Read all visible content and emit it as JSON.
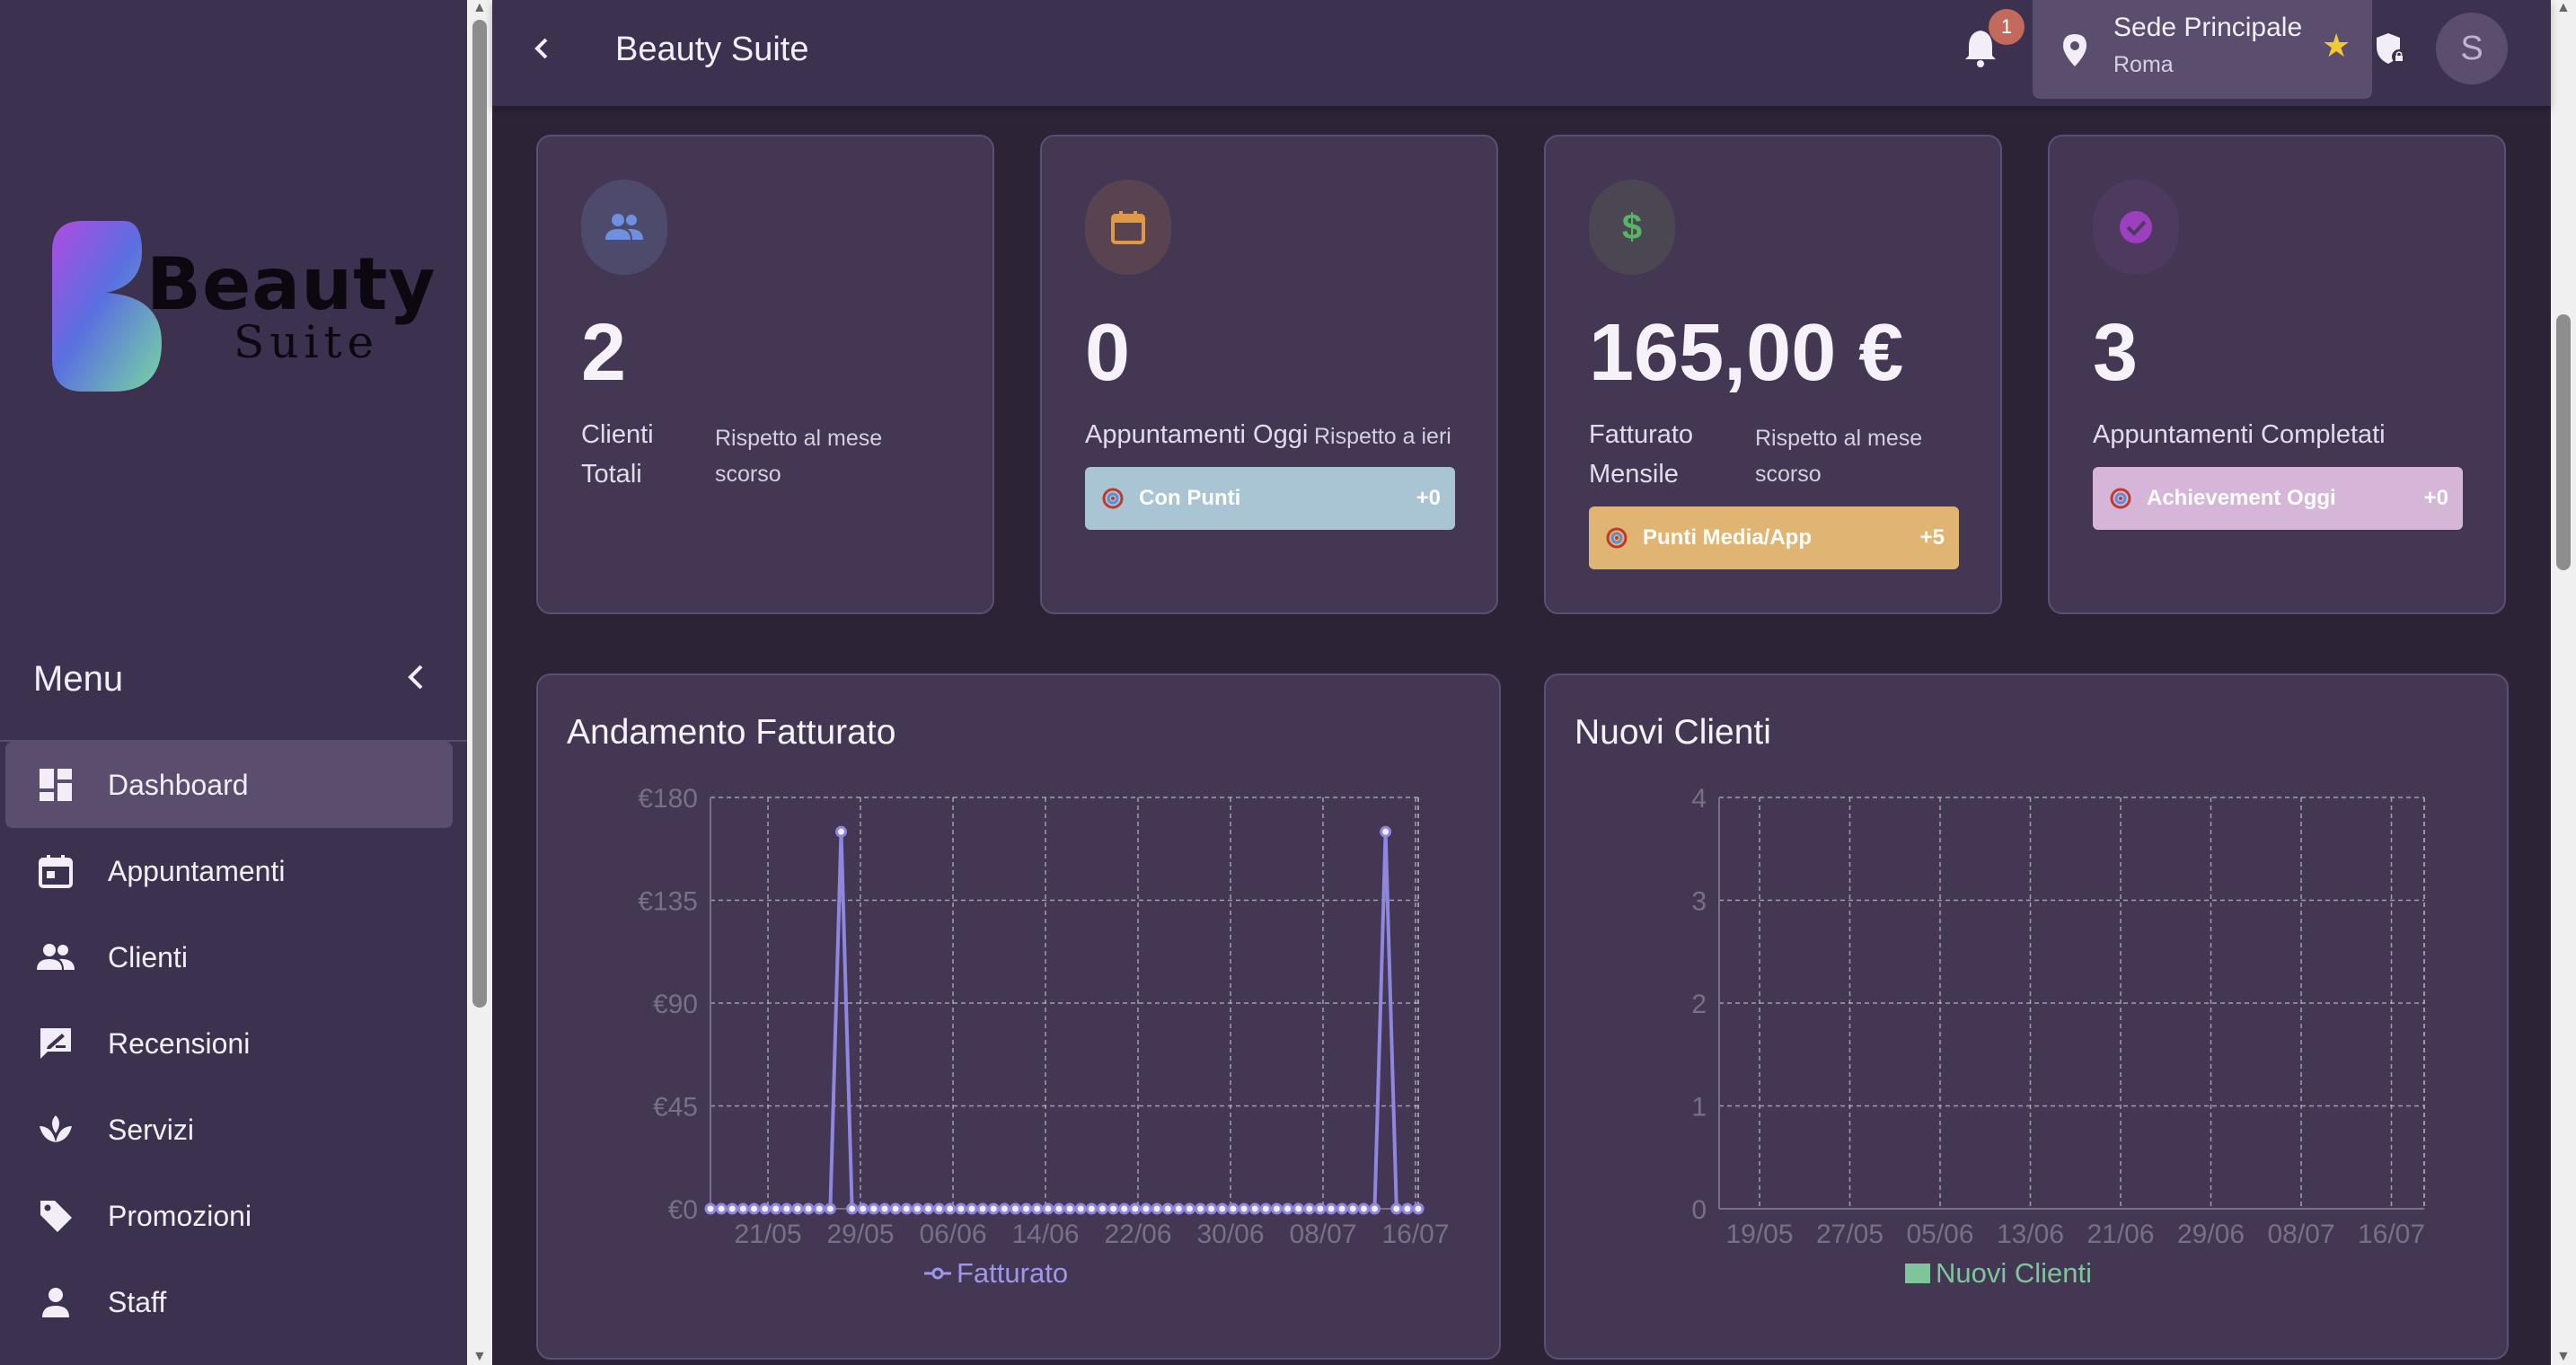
{
  "sidebar": {
    "logo": {
      "line1": "Beauty",
      "line2": "Suite"
    },
    "menu_title": "Menu",
    "items": [
      {
        "label": "Dashboard",
        "icon": "dashboard-icon",
        "active": true
      },
      {
        "label": "Appuntamenti",
        "icon": "calendar-icon",
        "active": false
      },
      {
        "label": "Clienti",
        "icon": "people-icon",
        "active": false
      },
      {
        "label": "Recensioni",
        "icon": "review-icon",
        "active": false
      },
      {
        "label": "Servizi",
        "icon": "spa-icon",
        "active": false
      },
      {
        "label": "Promozioni",
        "icon": "tag-icon",
        "active": false
      },
      {
        "label": "Staff",
        "icon": "person-icon",
        "active": false
      }
    ]
  },
  "header": {
    "title": "Beauty Suite",
    "notification_count": "1",
    "location": {
      "name": "Sede Principale",
      "city": "Roma"
    },
    "avatar_initial": "S"
  },
  "cards": [
    {
      "value": "2",
      "label_line1": "Clienti",
      "label_line2": "Totali",
      "sub_line1": "Rispetto al mese",
      "sub_line2": "scorso",
      "icon": "people-icon",
      "icon_color": "#6f8fe0",
      "icon_bg": "#4d4a6c"
    },
    {
      "value": "0",
      "label": "Appuntamenti Oggi",
      "sub": "Rispetto a ieri",
      "icon": "calendar-icon",
      "icon_color": "#e09a45",
      "icon_bg": "#5a4350",
      "pill": {
        "label": "Con Punti",
        "value": "+0",
        "color": "#a9c4d2"
      }
    },
    {
      "value": "165,00 €",
      "label_line1": "Fatturato",
      "label_line2": "Mensile",
      "sub_line1": "Rispetto al mese",
      "sub_line2": "scorso",
      "icon": "dollar-icon",
      "icon_color": "#58b368",
      "icon_bg": "#4a4752",
      "pill": {
        "label": "Punti Media/App",
        "value": "+5",
        "color": "#e0b573"
      }
    },
    {
      "value": "3",
      "label": "Appuntamenti Completati",
      "icon": "check-circle-icon",
      "icon_color": "#9c3fc0",
      "icon_bg": "#4d3a5e",
      "pill": {
        "label": "Achievement Oggi",
        "value": "+0",
        "color": "#d5b6d8"
      }
    }
  ],
  "chart_data": [
    {
      "type": "line",
      "title": "Andamento Fatturato",
      "x_tick_labels": [
        "21/05",
        "29/05",
        "06/06",
        "14/06",
        "22/06",
        "30/06",
        "08/07",
        "16/07"
      ],
      "y_tick_labels": [
        "€0",
        "€45",
        "€90",
        "€135",
        "€180"
      ],
      "ylim": [
        0,
        180
      ],
      "grid": true,
      "legend_position": "bottom",
      "series": [
        {
          "name": "Fatturato",
          "color": "#8f86e0",
          "x": [
            "13/05",
            "14/05",
            "15/05",
            "16/05",
            "17/05",
            "18/05",
            "19/05",
            "20/05",
            "21/05",
            "22/05",
            "23/05",
            "24/05",
            "25/05",
            "26/05",
            "27/05",
            "28/05",
            "29/05",
            "30/05",
            "31/05",
            "01/06",
            "02/06",
            "03/06",
            "04/06",
            "05/06",
            "06/06",
            "07/06",
            "08/06",
            "09/06",
            "10/06",
            "11/06",
            "12/06",
            "13/06",
            "14/06",
            "15/06",
            "16/06",
            "17/06",
            "18/06",
            "19/06",
            "20/06",
            "21/06",
            "22/06",
            "23/06",
            "24/06",
            "25/06",
            "26/06",
            "27/06",
            "28/06",
            "29/06",
            "30/06",
            "01/07",
            "02/07",
            "03/07",
            "04/07",
            "05/07",
            "06/07",
            "07/07",
            "08/07",
            "09/07",
            "10/07",
            "11/07",
            "12/07",
            "13/07",
            "14/07",
            "15/07",
            "16/07",
            "17/07"
          ],
          "values": [
            0,
            0,
            0,
            0,
            0,
            0,
            0,
            0,
            0,
            0,
            0,
            0,
            165,
            0,
            0,
            0,
            0,
            0,
            0,
            0,
            0,
            0,
            0,
            0,
            0,
            0,
            0,
            0,
            0,
            0,
            0,
            0,
            0,
            0,
            0,
            0,
            0,
            0,
            0,
            0,
            0,
            0,
            0,
            0,
            0,
            0,
            0,
            0,
            0,
            0,
            0,
            0,
            0,
            0,
            0,
            0,
            0,
            0,
            0,
            0,
            0,
            0,
            165,
            0,
            0,
            0
          ]
        }
      ]
    },
    {
      "type": "bar",
      "title": "Nuovi Clienti",
      "x_tick_labels": [
        "19/05",
        "27/05",
        "05/06",
        "13/06",
        "21/06",
        "29/06",
        "08/07",
        "16/07"
      ],
      "y_tick_labels": [
        "0",
        "1",
        "2",
        "3",
        "4"
      ],
      "ylim": [
        0,
        4
      ],
      "grid": true,
      "legend_position": "bottom",
      "series": [
        {
          "name": "Nuovi Clienti",
          "color": "#7fc49a",
          "values": [
            0,
            0,
            0,
            0,
            0,
            0,
            0,
            0
          ]
        }
      ]
    }
  ]
}
